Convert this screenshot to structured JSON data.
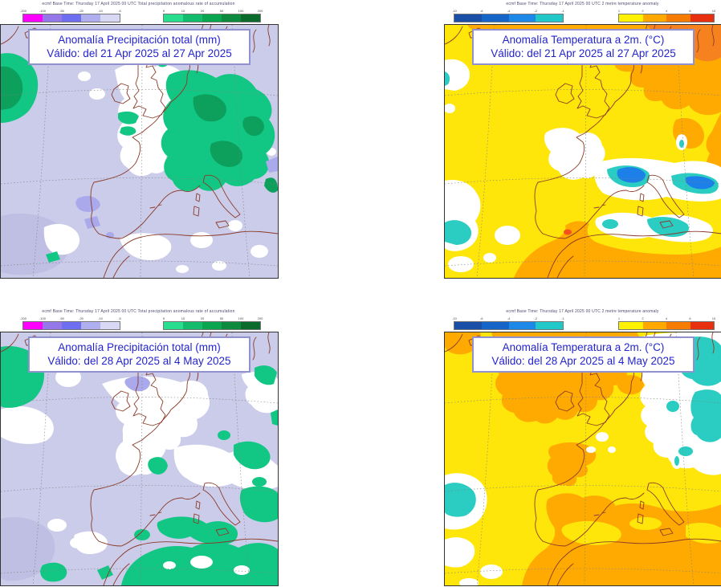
{
  "page": {
    "background": "#ffffff"
  },
  "panels": [
    {
      "id": "precip-week1",
      "header": "ecmf  Base Time: Thursday 17 April 2025 00 UTC  Total precipitation anomalous rate of accumulation",
      "title_line1": "Anomalía Precipitación total (mm)",
      "title_line2": "Válido: del 21 Apr 2025 al 27 Apr 2025"
    },
    {
      "id": "temp-week1",
      "header": "ecmf  Base Time: Thursday 17 April 2025 00 UTC  2 metre temperature anomaly",
      "title_line1": "Anomalía Temperatura a 2m. (°C)",
      "title_line2": "Válido: del 21 Apr 2025 al 27 Apr 2025"
    },
    {
      "id": "precip-week2",
      "header": "ecmf  Base Time: Thursday 17 April 2025 00 UTC  Total precipitation anomalous rate of accumulation",
      "title_line1": "Anomalía Precipitación total (mm)",
      "title_line2": "Válido: del 28 Apr 2025 al 4 May 2025"
    },
    {
      "id": "temp-week2",
      "header": "ecmf  Base Time: Thursday 17 April 2025 00 UTC  2 metre temperature anomaly",
      "title_line1": "Anomalía Temperatura a 2m. (°C)",
      "title_line2": "Válido: del 28 Apr 2025 al 4 May 2025"
    }
  ],
  "colorbars": {
    "precipitation": {
      "negative": {
        "colors": [
          "#FF00FF",
          "#9477E8",
          "#6E6EF0",
          "#AFAFF0",
          "#D8D8F5"
        ],
        "ticks": [
          "-200",
          "-100",
          "-50",
          "-20",
          "-10",
          "-5"
        ]
      },
      "positive": {
        "colors": [
          "#29DD8F",
          "#13BC6C",
          "#0AA64F",
          "#0E8A3E",
          "#0A6B2D"
        ],
        "ticks": [
          "5",
          "10",
          "20",
          "50",
          "100",
          "200"
        ]
      }
    },
    "temperature": {
      "negative": {
        "colors": [
          "#1A4FA8",
          "#1565C8",
          "#1E88E8",
          "#22C8C8"
        ],
        "ticks": [
          "-10",
          "-6",
          "-4",
          "-2",
          "-1"
        ]
      },
      "positive": {
        "colors": [
          "#FFF200",
          "#FFA800",
          "#F57C00",
          "#E83011"
        ],
        "ticks": [
          "1",
          "2",
          "4",
          "6",
          "10"
        ]
      }
    }
  },
  "map_colors": {
    "precip_background_lavender": "#CBCBEA",
    "precip_lavender_dark": "#BFBFE4",
    "precip_periwinkle": "#A9A9EC",
    "precip_green": "#12C784",
    "precip_green_dark": "#0CA05C",
    "temp_background_yellow": "#FFE60A",
    "temp_orange": "#FFAA00",
    "temp_orange_dark": "#F5821E",
    "temp_red_spot": "#F4511E",
    "temp_cyan": "#2BCCC2",
    "temp_blue": "#1C80E8",
    "coastline_brown": "#8A3B28",
    "title_text_blue": "#2424CC",
    "neutral_white": "#FFFFFF"
  }
}
